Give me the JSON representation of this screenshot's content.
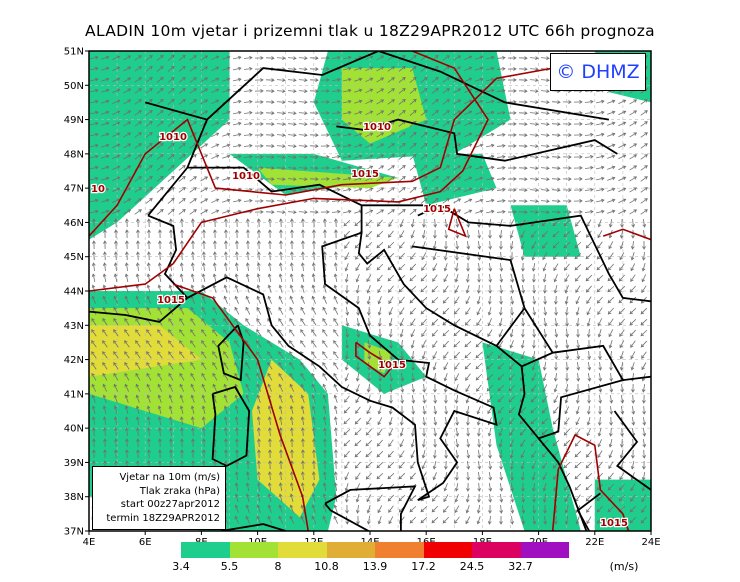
{
  "title": "ALADIN 10m vjetar i prizemni tlak u 18Z29APR2012 UTC 66h prognoza",
  "copyright": "© DHMZ",
  "legend": {
    "line1": "Vjetar na 10m (m/s)",
    "line2": "Tlak zraka (hPa)",
    "line3": "start 00z27apr2012",
    "line4": "termin 18Z29APR2012"
  },
  "lat_labels": [
    "51N",
    "50N",
    "49N",
    "48N",
    "47N",
    "46N",
    "45N",
    "44N",
    "43N",
    "42N",
    "41N",
    "40N",
    "39N",
    "38N",
    "37N"
  ],
  "lon_labels": [
    "4E",
    "6E",
    "8E",
    "10E",
    "12E",
    "14E",
    "16E",
    "18E",
    "20E",
    "22E",
    "24E"
  ],
  "isobar_labels": [
    "1010",
    "1010",
    "1010",
    "1015",
    "1015",
    "1015",
    "1015",
    "1015",
    "10"
  ],
  "colorbar": {
    "colors": [
      "#1fce8c",
      "#a2e234",
      "#e2dc3a",
      "#e0ae34",
      "#f08030",
      "#f00000",
      "#dc0060",
      "#a010c0"
    ],
    "labels": [
      "3.4",
      "5.5",
      "8",
      "10.8",
      "13.9",
      "17.2",
      "24.5",
      "32.7"
    ],
    "unit": "(m/s)"
  },
  "colors": {
    "isobar": "#a00000",
    "coast": "#000000",
    "arrow": "#707070"
  }
}
